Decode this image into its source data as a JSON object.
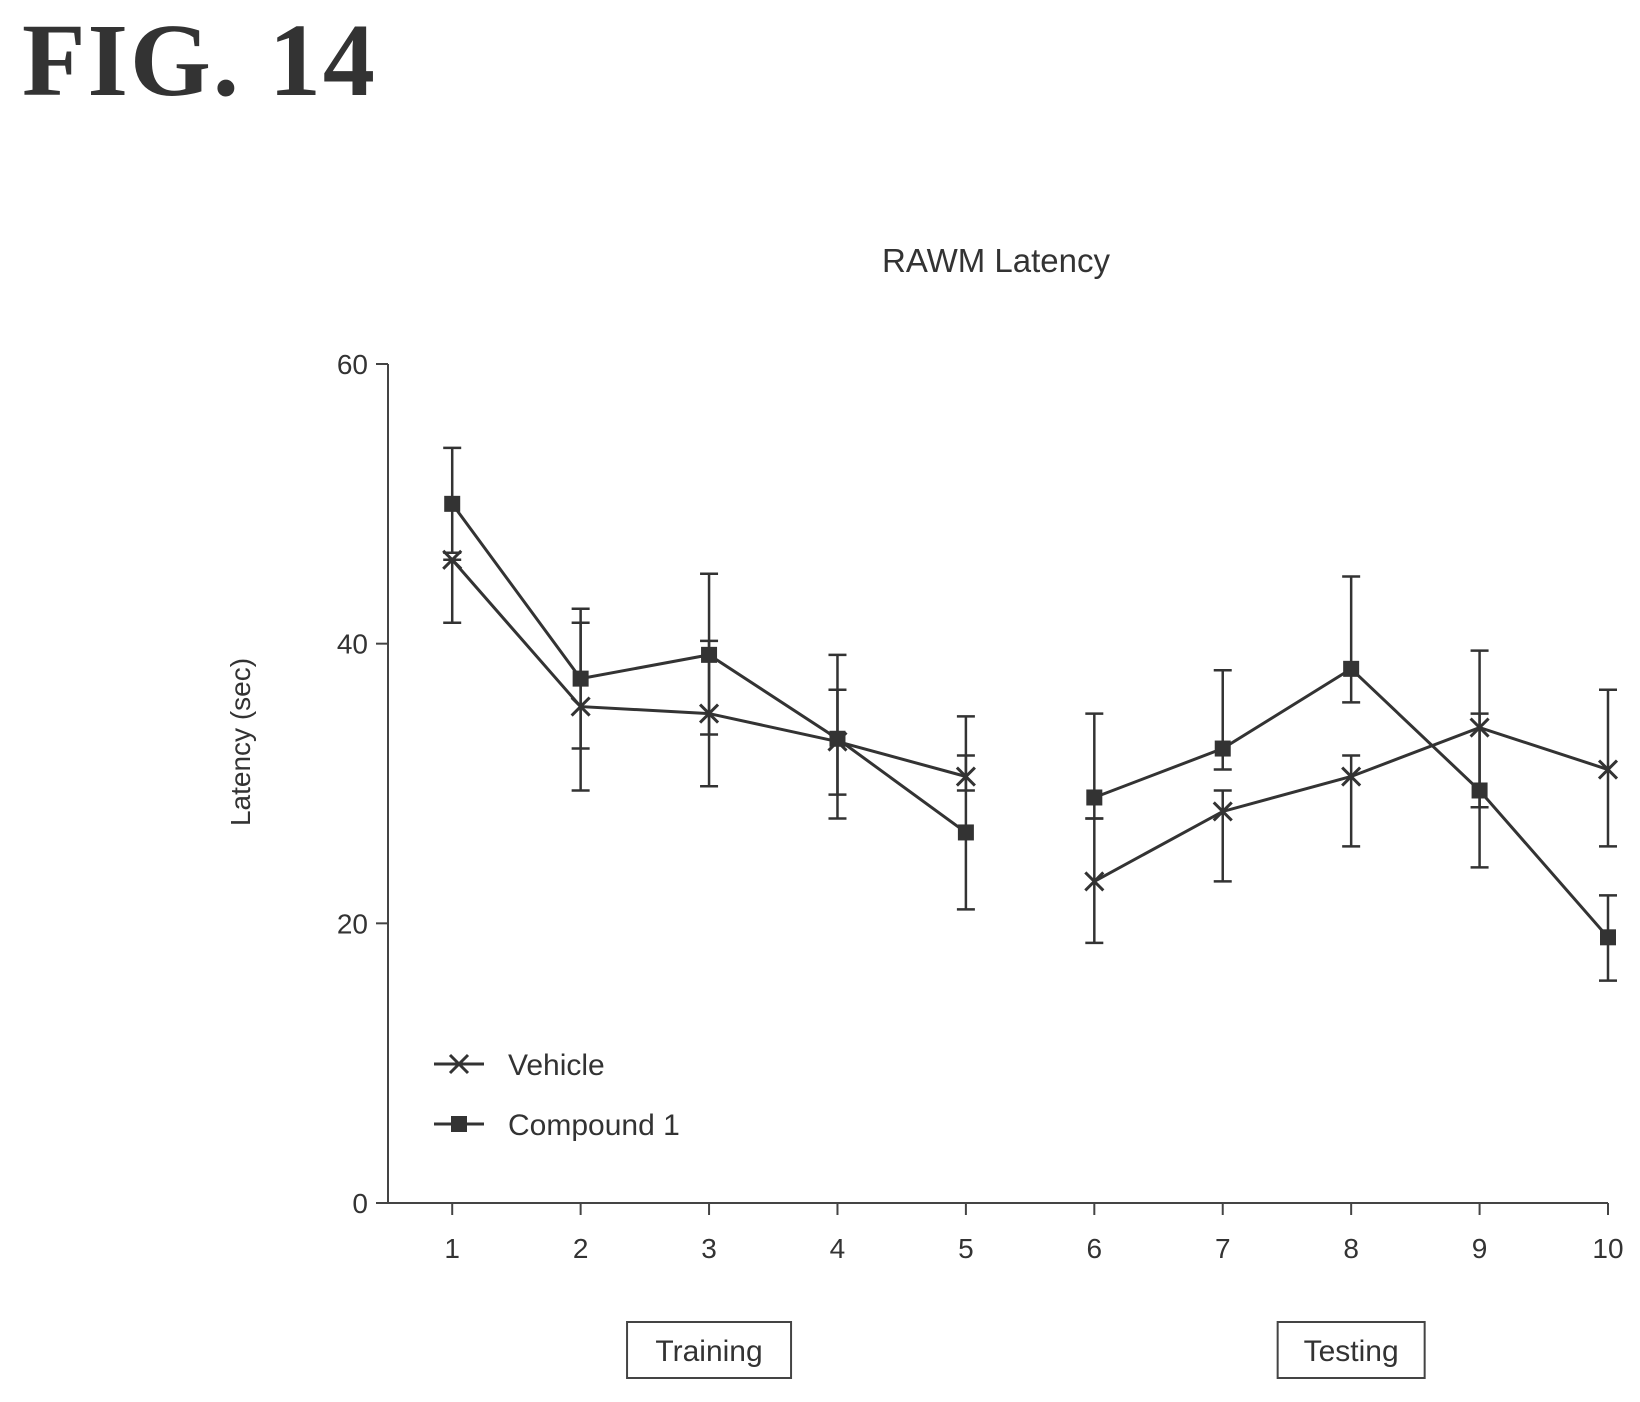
{
  "figure_label": "FIG. 14",
  "chart_data": {
    "type": "line",
    "title": "RAWM Latency",
    "xlabel": "",
    "ylabel": "Latency (sec)",
    "x": [
      1,
      2,
      3,
      4,
      5,
      6,
      7,
      8,
      9,
      10
    ],
    "x_tick_labels": [
      "1",
      "2",
      "3",
      "4",
      "5",
      "6",
      "7",
      "8",
      "9",
      "10"
    ],
    "xlim": [
      0.5,
      10
    ],
    "ylim": [
      0,
      60
    ],
    "y_ticks": [
      0,
      20,
      40,
      60
    ],
    "y_tick_labels": [
      "0",
      "20",
      "40",
      "60"
    ],
    "grid": false,
    "legend_position": "bottom-left",
    "segments": [
      [
        1,
        5
      ],
      [
        6,
        10
      ]
    ],
    "series": [
      {
        "name": "Vehicle",
        "marker": "x",
        "values": [
          46,
          35.5,
          35,
          33,
          30.5,
          23,
          28,
          30.5,
          34,
          31
        ],
        "err_low": [
          41.5,
          32.5,
          33.5,
          29.2,
          29.5,
          18.6,
          23,
          25.5,
          28.3,
          25.5
        ],
        "err_high": [
          46,
          41.5,
          40.2,
          36.7,
          32,
          27.5,
          29.5,
          32,
          35,
          36.7
        ]
      },
      {
        "name": "Compound 1",
        "marker": "square",
        "values": [
          50,
          37.5,
          39.2,
          33.2,
          26.5,
          29,
          32.5,
          38.2,
          29.5,
          19
        ],
        "err_low": [
          46.5,
          29.5,
          29.8,
          27.5,
          21,
          27.5,
          31,
          35.8,
          24,
          15.9
        ],
        "err_high": [
          54,
          42.5,
          45,
          39.2,
          34.8,
          35,
          38.1,
          44.8,
          39.5,
          22
        ]
      }
    ],
    "phase_labels": [
      {
        "text": "Training",
        "at_x": 3
      },
      {
        "text": "Testing",
        "at_x": 8
      }
    ]
  }
}
